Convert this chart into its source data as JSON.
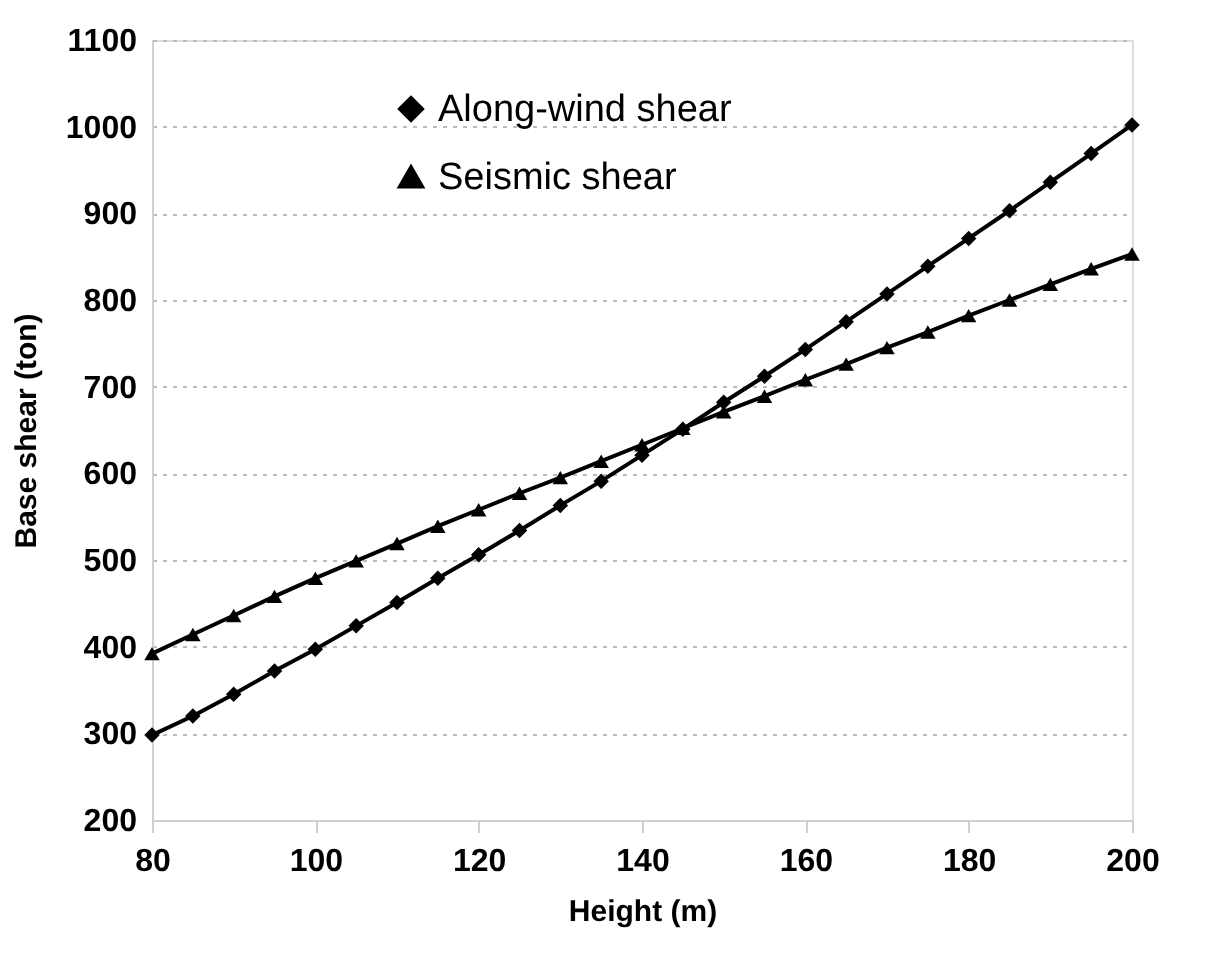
{
  "chart_data": {
    "type": "line",
    "xlabel": "Height (m)",
    "ylabel": "Base shear (ton)",
    "x": [
      80,
      85,
      90,
      95,
      100,
      105,
      110,
      115,
      120,
      125,
      130,
      135,
      140,
      145,
      150,
      155,
      160,
      165,
      170,
      175,
      180,
      185,
      190,
      195,
      200
    ],
    "series": [
      {
        "name": "Along-wind shear",
        "color": "#000000",
        "marker": "diamond",
        "values": [
          298,
          320,
          345,
          372,
          397,
          424,
          451,
          479,
          506,
          534,
          563,
          591,
          621,
          651,
          682,
          712,
          743,
          775,
          807,
          839,
          871,
          903,
          936,
          969,
          1002
        ]
      },
      {
        "name": "Seismic shear",
        "color": "#000000",
        "marker": "triangle",
        "values": [
          392,
          414,
          436,
          458,
          479,
          499,
          519,
          539,
          558,
          577,
          595,
          614,
          633,
          652,
          671,
          689,
          708,
          726,
          745,
          763,
          782,
          800,
          818,
          836,
          853
        ]
      }
    ],
    "xlim": [
      80,
      200
    ],
    "xticks": [
      80,
      100,
      120,
      140,
      160,
      180,
      200
    ],
    "ylim": [
      200,
      1100
    ],
    "yticks": [
      200,
      300,
      400,
      500,
      600,
      700,
      800,
      900,
      1000,
      1100
    ],
    "grid": "y",
    "legend": "top left",
    "line_style": "solid"
  }
}
